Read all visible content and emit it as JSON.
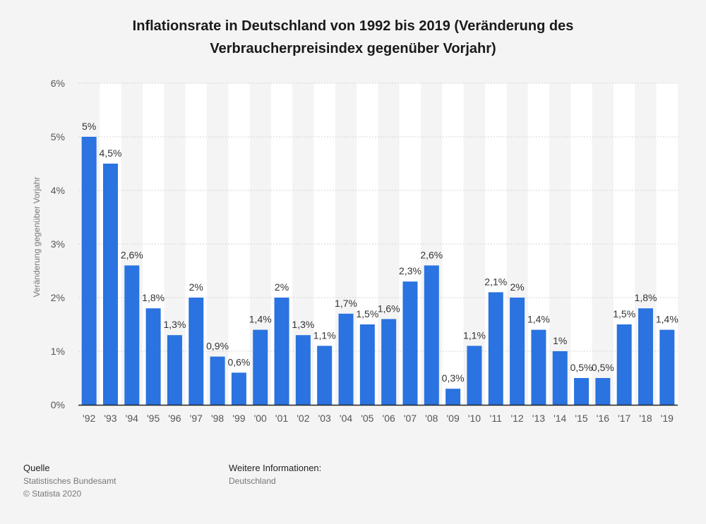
{
  "chart_data": {
    "type": "bar",
    "title": "Inflationsrate in Deutschland von 1992 bis 2019 (Veränderung des Verbraucherpreisindex gegenüber Vorjahr)",
    "xlabel": "",
    "ylabel": "Veränderung gegenüber Vorjahr",
    "ylim": [
      0,
      6
    ],
    "y_ticks": [
      {
        "value": 0,
        "label": "0%"
      },
      {
        "value": 1,
        "label": "1%"
      },
      {
        "value": 2,
        "label": "2%"
      },
      {
        "value": 3,
        "label": "3%"
      },
      {
        "value": 4,
        "label": "4%"
      },
      {
        "value": 5,
        "label": "5%"
      },
      {
        "value": 6,
        "label": "6%"
      }
    ],
    "grid": true,
    "categories": [
      "'92",
      "'93",
      "'94",
      "'95",
      "'96",
      "'97",
      "'98",
      "'99",
      "'00",
      "'01",
      "'02",
      "'03",
      "'04",
      "'05",
      "'06",
      "'07",
      "'08",
      "'09",
      "'10",
      "'11",
      "'12",
      "'13",
      "'14",
      "'15",
      "'16",
      "'17",
      "'18",
      "'19"
    ],
    "values": [
      5,
      4.5,
      2.6,
      1.8,
      1.3,
      2,
      0.9,
      0.6,
      1.4,
      2,
      1.3,
      1.1,
      1.7,
      1.5,
      1.6,
      2.3,
      2.6,
      0.3,
      1.1,
      2.1,
      2,
      1.4,
      1,
      0.5,
      0.5,
      1.5,
      1.8,
      1.4
    ],
    "data_labels": [
      "5%",
      "4,5%",
      "2,6%",
      "1,8%",
      "1,3%",
      "2%",
      "0,9%",
      "0,6%",
      "1,4%",
      "2%",
      "1,3%",
      "1,1%",
      "1,7%",
      "1,5%",
      "1,6%",
      "2,3%",
      "2,6%",
      "0,3%",
      "1,1%",
      "2,1%",
      "2%",
      "1,4%",
      "1%",
      "0,5%",
      "0,5%",
      "1,5%",
      "1,8%",
      "1,4%"
    ]
  },
  "colors": {
    "bar": "#2a73e0",
    "band": "#ffffff",
    "grid": "#d4d4d4",
    "axis": "#222222",
    "background": "#f4f4f4"
  },
  "footer": {
    "source_heading": "Quelle",
    "source_text": "Statistisches Bundesamt",
    "copyright": "© Statista 2020",
    "info_heading": "Weitere Informationen:",
    "info_text": "Deutschland"
  }
}
